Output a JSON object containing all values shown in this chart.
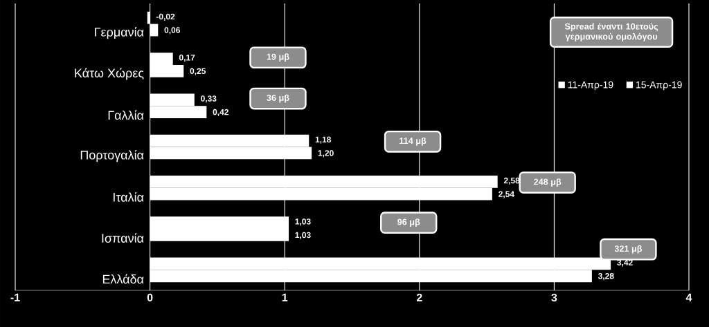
{
  "chart_data": {
    "type": "bar",
    "orientation": "horizontal",
    "title": "Spread έναντι 10ετούς γερμανικού ομολόγου",
    "categories": [
      "Γερμανία",
      "Κάτω Χώρες",
      "Γαλλία",
      "Πορτογαλία",
      "Ιταλία",
      "Ισπανία",
      "Ελλάδα"
    ],
    "series": [
      {
        "name": "11-Απρ-19",
        "color": "#ffffff",
        "values": [
          -0.02,
          0.17,
          0.33,
          1.18,
          2.58,
          1.03,
          3.42
        ],
        "value_labels": [
          "-0,02",
          "0,17",
          "0,33",
          "1,18",
          "2,58",
          "1,03",
          "3,42"
        ]
      },
      {
        "name": "15-Απρ-19",
        "color": "#ffffff",
        "values": [
          0.06,
          0.25,
          0.42,
          1.2,
          2.54,
          1.03,
          3.28
        ],
        "value_labels": [
          "0,06",
          "0,25",
          "0,42",
          "1,20",
          "2,54",
          "1,03",
          "3,28"
        ]
      }
    ],
    "xlim": [
      -1,
      4
    ],
    "xticks": [
      -1,
      0,
      1,
      2,
      3,
      4
    ],
    "grid": "x",
    "legend": "top right",
    "annotations": [
      "19 μβ",
      "36 μβ",
      "114 μβ",
      "248 μβ",
      "96 μβ",
      "321 μβ"
    ]
  }
}
